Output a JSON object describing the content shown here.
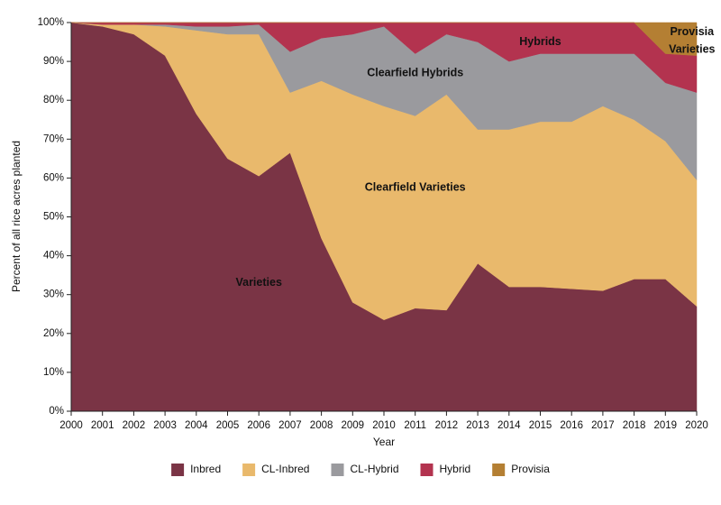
{
  "chart_data": {
    "type": "area",
    "stacked": true,
    "normalized": true,
    "xlabel": "Year",
    "ylabel": "Percent of all rice acres planted",
    "ylim": [
      0,
      100
    ],
    "yticks": [
      0,
      10,
      20,
      30,
      40,
      50,
      60,
      70,
      80,
      90,
      100
    ],
    "ytick_labels": [
      "0%",
      "10%",
      "20%",
      "30%",
      "40%",
      "50%",
      "60%",
      "70%",
      "80%",
      "90%",
      "100%"
    ],
    "categories": [
      "2000",
      "2001",
      "2002",
      "2003",
      "2004",
      "2005",
      "2006",
      "2007",
      "2008",
      "2009",
      "2010",
      "2011",
      "2012",
      "2013",
      "2014",
      "2015",
      "2016",
      "2017",
      "2018",
      "2019",
      "2020"
    ],
    "series": [
      {
        "name": "Inbred",
        "color": "#7a3445",
        "values": [
          100,
          99,
          97,
          91.5,
          76.5,
          65,
          60.5,
          66.5,
          44.5,
          28,
          23.5,
          26.5,
          26,
          38,
          32,
          32,
          31.5,
          31,
          34,
          34,
          27
        ]
      },
      {
        "name": "CL-Inbred",
        "color": "#e9b96c",
        "values": [
          0,
          0.5,
          2.5,
          7.5,
          21.5,
          32,
          36.5,
          15.5,
          40.5,
          53.5,
          55,
          49.5,
          55.5,
          34.5,
          40.5,
          42.5,
          43,
          47.5,
          41,
          35.5,
          32.5
        ]
      },
      {
        "name": "CL-Hybrid",
        "color": "#9a9a9e",
        "values": [
          0,
          0,
          0,
          0.5,
          1,
          2,
          2.5,
          10.5,
          11,
          15.5,
          20.5,
          16,
          15.5,
          22.5,
          17.5,
          17.5,
          17.5,
          13.5,
          17,
          15,
          22.5
        ]
      },
      {
        "name": "Hybrid",
        "color": "#b3334f",
        "values": [
          0,
          0.5,
          0.5,
          0.5,
          1,
          1,
          0.5,
          7.5,
          4,
          3,
          1,
          8,
          3,
          5,
          10,
          8,
          8,
          8,
          8,
          7.5,
          9.5
        ]
      },
      {
        "name": "Provisia",
        "color": "#b47f33",
        "values": [
          0,
          0,
          0,
          0,
          0,
          0,
          0,
          0,
          0,
          0,
          0,
          0,
          0,
          0,
          0,
          0,
          0,
          0,
          0,
          8,
          8.5
        ]
      }
    ],
    "area_labels": [
      {
        "text": "Varieties",
        "x": 2006,
        "y": 33,
        "series": "Inbred"
      },
      {
        "text": "Clearfield Varieties",
        "x": 2011,
        "y": 57.5,
        "series": "CL-Inbred"
      },
      {
        "text": "Clearfield Hybrids",
        "x": 2011,
        "y": 87,
        "series": "CL-Hybrid"
      },
      {
        "text": "Hybrids",
        "x": 2015,
        "y": 95,
        "series": "Hybrid"
      },
      {
        "text": "Provisia",
        "x": 2019.85,
        "y": 97.5,
        "series": "Provisia"
      },
      {
        "text": "Varieties",
        "x": 2019.85,
        "y": 93,
        "series": "Provisia"
      }
    ],
    "legend": {
      "placement": "bottom",
      "entries": [
        "Inbred",
        "CL-Inbred",
        "CL-Hybrid",
        "Hybrid",
        "Provisia"
      ]
    }
  }
}
